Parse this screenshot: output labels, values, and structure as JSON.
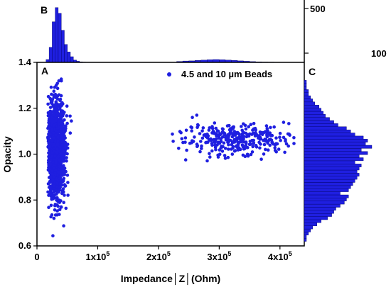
{
  "colors": {
    "marker": "#1f1fe0",
    "bar_fill": "#1f1fe0",
    "bar_edge": "#000066",
    "axis": "#000000"
  },
  "chart_data": {
    "type": "scatter",
    "legend": "4.5 and 10 µm Beads",
    "legend_placement": "top-right",
    "xlabel": "Impedance│Z│(Ohm)",
    "ylabel": "Opacity",
    "xlim": [
      0,
      440000
    ],
    "ylim": [
      0.6,
      1.4
    ],
    "x_ticks": [
      {
        "value": 0,
        "label": "0"
      },
      {
        "value": 100000,
        "label": "1x10",
        "exp": "5"
      },
      {
        "value": 200000,
        "label": "2x10",
        "exp": "5"
      },
      {
        "value": 300000,
        "label": "3x10",
        "exp": "5"
      },
      {
        "value": 400000,
        "label": "4x10",
        "exp": "5"
      }
    ],
    "y_ticks": [
      "0.6",
      "0.8",
      "1.0",
      "1.2",
      "1.4"
    ],
    "panels": {
      "scatter": "A",
      "top_histogram": "B",
      "right_histogram": "C"
    },
    "clusters": [
      {
        "x_mean": 32000,
        "x_sd": 7000,
        "x_min": 18000,
        "x_max": 95000,
        "y_mean": 1.02,
        "y_sd": 0.1,
        "count": 1300
      },
      {
        "x_mean": 330000,
        "x_sd": 50000,
        "x_min": 222000,
        "x_max": 425000,
        "y_mean": 1.06,
        "y_sd": 0.035,
        "count": 320
      }
    ],
    "top_histogram": {
      "count_ticks": [
        "100",
        "500"
      ],
      "count_range": [
        0,
        600
      ],
      "bin_edges_start": 15000,
      "bin_width": 5000,
      "counts": [
        30,
        160,
        430,
        580,
        520,
        340,
        190,
        110,
        60,
        25,
        12,
        6,
        3,
        2,
        1
      ]
    },
    "top_histogram_cluster2": {
      "bin_edges_start": 230000,
      "bin_width": 10000,
      "counts": [
        10,
        14,
        16,
        20,
        24,
        28,
        30,
        28,
        24,
        20,
        16,
        12,
        8,
        6,
        4,
        3,
        2,
        1,
        1,
        1
      ]
    },
    "right_histogram": {
      "bin_start": 0.62,
      "bin_width": 0.0135,
      "counts": [
        1,
        1,
        2,
        3,
        4,
        6,
        8,
        11,
        13,
        14,
        15,
        17,
        19,
        20,
        21,
        17,
        21,
        22,
        23,
        24,
        25,
        26,
        25,
        26,
        27,
        24,
        28,
        26,
        30,
        27,
        32,
        29,
        30,
        28,
        24,
        22,
        20,
        16,
        14,
        12,
        10,
        9,
        8,
        7,
        5,
        4,
        3,
        2,
        2,
        1,
        1,
        1
      ]
    }
  }
}
